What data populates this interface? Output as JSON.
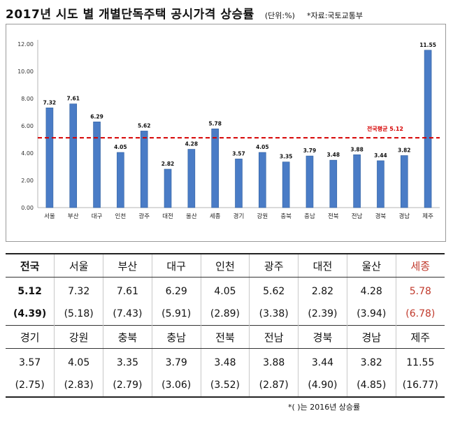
{
  "header": {
    "title": "2017년 시도 별 개별단독주택 공시가격 상승률",
    "unit": "(단위:%)",
    "source": "*자료:국토교통부"
  },
  "colors": {
    "bar": "#4a7cc6",
    "bar_edge": "#2f5f9e",
    "avg_line": "#d60000",
    "highlight_text": "#c0392b"
  },
  "chart_data": {
    "type": "bar",
    "categories": [
      "서울",
      "부산",
      "대구",
      "인천",
      "광주",
      "대전",
      "울산",
      "세종",
      "경기",
      "강원",
      "충북",
      "충남",
      "전북",
      "전남",
      "경북",
      "경남",
      "제주"
    ],
    "values": [
      7.32,
      7.61,
      6.29,
      4.05,
      5.62,
      2.82,
      4.28,
      5.78,
      3.57,
      4.05,
      3.35,
      3.79,
      3.48,
      3.88,
      3.44,
      3.82,
      11.55
    ],
    "value_labels": [
      "7.32",
      "7.61",
      "6.29",
      "4.05",
      "5.62",
      "2.82",
      "4.28",
      "5.78",
      "3.57",
      "4.05",
      "3.35",
      "3.79",
      "3.48",
      "3.88",
      "3.44",
      "3.82",
      "11.55"
    ],
    "ylim": [
      0,
      12
    ],
    "yticks": [
      "0.00",
      "2.00",
      "4.00",
      "6.00",
      "8.00",
      "10.00",
      "12.00"
    ],
    "reference_line": {
      "label": "전국평균 5.12",
      "value": 5.12
    },
    "grid": false,
    "title": "",
    "xlabel": "",
    "ylabel": ""
  },
  "table": {
    "rows": [
      {
        "kind": "hdr",
        "cells": [
          "전국",
          "서울",
          "부산",
          "대구",
          "인천",
          "광주",
          "대전",
          "울산",
          "세종"
        ]
      },
      {
        "kind": "val",
        "cells": [
          "5.12",
          "7.32",
          "7.61",
          "6.29",
          "4.05",
          "5.62",
          "2.82",
          "4.28",
          "5.78"
        ]
      },
      {
        "kind": "prev",
        "cells": [
          "(4.39)",
          "(5.18)",
          "(7.43)",
          "(5.91)",
          "(2.89)",
          "(3.38)",
          "(2.39)",
          "(3.94)",
          "(6.78)"
        ]
      },
      {
        "kind": "hdr",
        "cells": [
          "경기",
          "강원",
          "충북",
          "충남",
          "전북",
          "전남",
          "경북",
          "경남",
          "제주"
        ]
      },
      {
        "kind": "val",
        "cells": [
          "3.57",
          "4.05",
          "3.35",
          "3.79",
          "3.48",
          "3.88",
          "3.44",
          "3.82",
          "11.55"
        ]
      },
      {
        "kind": "prev",
        "cells": [
          "(2.75)",
          "(2.83)",
          "(2.79)",
          "(3.06)",
          "(3.52)",
          "(2.87)",
          "(4.90)",
          "(4.85)",
          "(16.77)"
        ]
      }
    ]
  },
  "footnote": "*(  )는 2016년 상승률"
}
